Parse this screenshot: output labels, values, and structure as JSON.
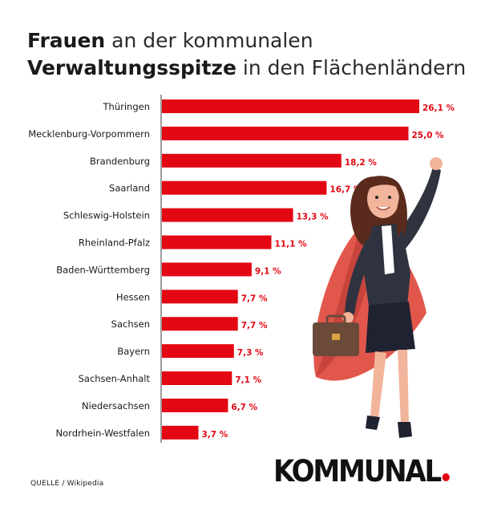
{
  "header": {
    "title_bold_1": "Frauen",
    "title_rest_1": " an der kommunalen",
    "title_bold_2": "Verwaltungsspitze",
    "title_rest_2": " in den Flächenländern"
  },
  "footer": {
    "source": "QUELLE / Wikipedia",
    "brand": "KOMMUNAL"
  },
  "colors": {
    "bar": "#e30613",
    "value_label": "#e30613",
    "brand_dot": "#e30613",
    "text": "#1a1a1a"
  },
  "chart_data": {
    "type": "bar",
    "orientation": "horizontal",
    "categories": [
      "Thüringen",
      "Mecklenburg-Vorpommern",
      "Brandenburg",
      "Saarland",
      "Schleswig-Holstein",
      "Rheinland-Pfalz",
      "Baden-Württemberg",
      "Hessen",
      "Sachsen",
      "Bayern",
      "Sachsen-Anhalt",
      "Niedersachsen",
      "Nordrhein-Westfalen"
    ],
    "values": [
      26.1,
      25.0,
      18.2,
      16.7,
      13.3,
      11.1,
      9.1,
      7.7,
      7.7,
      7.3,
      7.1,
      6.7,
      3.7
    ],
    "value_labels": [
      "26,1 %",
      "25,0 %",
      "18,2 %",
      "16,7 %",
      "13,3 %",
      "11,1 %",
      "9,1 %",
      "7,7 %",
      "7,7 %",
      "7,3 %",
      "7,1 %",
      "6,7 %",
      "3,7 %"
    ],
    "xlim": [
      0,
      26.1
    ],
    "grid": false,
    "legend": "none"
  }
}
